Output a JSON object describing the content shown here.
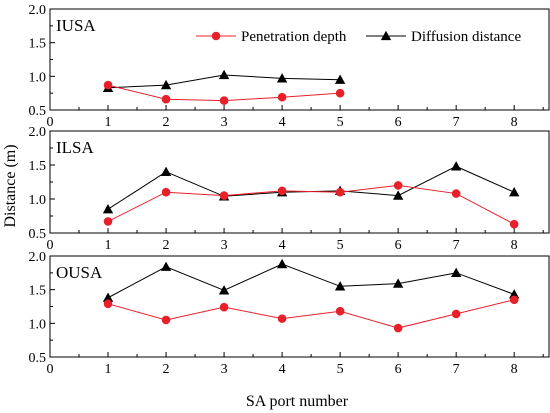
{
  "figure": {
    "ylabel": "Distance (m)",
    "xlabel": "SA port number",
    "legend": {
      "penetration": "Penetration depth",
      "diffusion": "Diffusion distance"
    },
    "colors": {
      "penetration": "#e8202a",
      "diffusion": "#000000"
    }
  },
  "chart_data": [
    {
      "type": "line",
      "panel": "IUSA",
      "xlim": [
        0,
        8.6
      ],
      "ylim": [
        0.5,
        2.0
      ],
      "xticks": [
        "0",
        "1",
        "2",
        "3",
        "4",
        "5",
        "6",
        "7",
        "8"
      ],
      "yticks": [
        "0.5",
        "1.0",
        "1.5",
        "2.0"
      ],
      "legend_position": "top-right",
      "series": [
        {
          "name": "Penetration depth",
          "marker": "circle",
          "x": [
            1,
            2,
            3,
            4,
            5
          ],
          "values": [
            0.87,
            0.66,
            0.64,
            0.69,
            0.75
          ]
        },
        {
          "name": "Diffusion distance",
          "marker": "triangle",
          "x": [
            1,
            2,
            3,
            4,
            5
          ],
          "values": [
            0.83,
            0.87,
            1.02,
            0.97,
            0.95
          ]
        }
      ]
    },
    {
      "type": "line",
      "panel": "ILSA",
      "xlim": [
        0,
        8.6
      ],
      "ylim": [
        0.5,
        2.0
      ],
      "xticks": [
        "0",
        "1",
        "2",
        "3",
        "4",
        "5",
        "6",
        "7",
        "8"
      ],
      "yticks": [
        "0.5",
        "1.0",
        "1.5",
        "2.0"
      ],
      "series": [
        {
          "name": "Penetration depth",
          "marker": "circle",
          "x": [
            1,
            2,
            3,
            4,
            5,
            6,
            7,
            8
          ],
          "values": [
            0.67,
            1.1,
            1.05,
            1.12,
            1.1,
            1.2,
            1.08,
            0.63
          ]
        },
        {
          "name": "Diffusion distance",
          "marker": "triangle",
          "x": [
            1,
            2,
            3,
            4,
            5,
            6,
            7,
            8
          ],
          "values": [
            0.85,
            1.4,
            1.04,
            1.1,
            1.12,
            1.05,
            1.48,
            1.1
          ]
        }
      ]
    },
    {
      "type": "line",
      "panel": "OUSA",
      "xlim": [
        0,
        8.6
      ],
      "ylim": [
        0.5,
        2.0
      ],
      "xticks": [
        "0",
        "1",
        "2",
        "3",
        "4",
        "5",
        "6",
        "7",
        "8"
      ],
      "yticks": [
        "0.5",
        "1.0",
        "1.5",
        "2.0"
      ],
      "series": [
        {
          "name": "Penetration depth",
          "marker": "circle",
          "x": [
            1,
            2,
            3,
            4,
            5,
            6,
            7,
            8
          ],
          "values": [
            1.29,
            1.05,
            1.24,
            1.07,
            1.18,
            0.93,
            1.14,
            1.35
          ]
        },
        {
          "name": "Diffusion distance",
          "marker": "triangle",
          "x": [
            1,
            2,
            3,
            4,
            5,
            6,
            7,
            8
          ],
          "values": [
            1.38,
            1.84,
            1.49,
            1.88,
            1.55,
            1.59,
            1.75,
            1.43
          ]
        }
      ]
    }
  ]
}
